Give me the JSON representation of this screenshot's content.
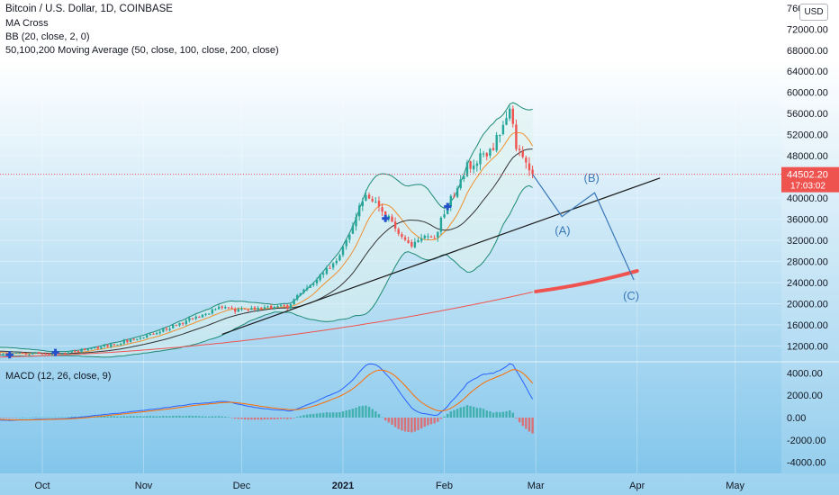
{
  "header": {
    "title": "Bitcoin / U.S. Dollar, 1D, COINBASE",
    "indicators": [
      "MA Cross",
      "BB (20, close, 2, 0)",
      "50,100,200 Moving Average (50, close, 100, close, 200, close)"
    ],
    "currency": "USD"
  },
  "macd_panel": {
    "label": "MACD (12, 26, close, 9)"
  },
  "last_price": {
    "value": "44502.20",
    "countdown": "17:03:02"
  },
  "colors": {
    "up": "#26a69a",
    "down": "#ef5350",
    "bb": "#1e8a76",
    "bb_fill": "#dff2ee",
    "ma_cross_fast": "#f0902f",
    "ma_cross_slow": "#333333",
    "ma200": "#ef5350",
    "macd": "#2962ff",
    "signal": "#ff6d00",
    "projection": "#3a78b8",
    "trendline": "#1a1a1a",
    "background_top": "#ffffff",
    "background_bottom": "#7cc3ea"
  },
  "chart_data": [
    {
      "type": "candlestick",
      "title": "Bitcoin / U.S. Dollar, 1D, COINBASE",
      "y_axis_ticks": [
        12000,
        16000,
        20000,
        24000,
        28000,
        32000,
        36000,
        40000,
        44000,
        48000,
        52000,
        56000,
        60000,
        64000,
        68000,
        72000,
        76000
      ],
      "y_axis_labels": [
        "12000.00",
        "16000.00",
        "20000.00",
        "24000.00",
        "28000.00",
        "32000.00",
        "36000.00",
        "40000.00",
        "44000.00",
        "48000.00",
        "52000.00",
        "56000.00",
        "60000.00",
        "64000.00",
        "68000.00",
        "72000.00",
        "76000.00"
      ],
      "ylim": [
        9000,
        77500
      ],
      "x_axis_labels": [
        "Oct",
        "Nov",
        "Dec",
        "2021",
        "Feb",
        "Mar",
        "Apr",
        "May"
      ],
      "x_axis_dates": [
        "2020-10-01",
        "2020-11-01",
        "2020-12-01",
        "2021-01-01",
        "2021-02-01",
        "2021-03-01",
        "2021-04-01",
        "2021-05-01"
      ],
      "close_anchors": [
        [
          "2020-09-01",
          11400
        ],
        [
          "2020-09-22",
          10500
        ],
        [
          "2020-10-08",
          10700
        ],
        [
          "2020-10-20",
          11900
        ],
        [
          "2020-11-01",
          13700
        ],
        [
          "2020-11-24",
          19100
        ],
        [
          "2020-12-01",
          18800
        ],
        [
          "2020-12-15",
          19400
        ],
        [
          "2020-12-31",
          29000
        ],
        [
          "2021-01-08",
          41000
        ],
        [
          "2021-01-13",
          37500
        ],
        [
          "2021-01-21",
          31000
        ],
        [
          "2021-01-29",
          33000
        ],
        [
          "2021-02-08",
          46000
        ],
        [
          "2021-02-15",
          48500
        ],
        [
          "2021-02-21",
          57500
        ],
        [
          "2021-02-23",
          48800
        ],
        [
          "2021-02-27",
          46200
        ],
        [
          "2021-02-28",
          44502
        ]
      ],
      "ma_cross_markers": [
        "2020-09-02",
        "2020-09-16",
        "2020-09-21",
        "2020-10-05",
        "2021-01-14",
        "2021-02-02"
      ],
      "bollinger_bands": {
        "period": 20,
        "stddev": 2
      },
      "moving_averages": [
        50,
        100,
        200
      ],
      "projection": {
        "points": [
          [
            "2021-02-28",
            44502
          ],
          [
            "2021-03-09",
            36500
          ],
          [
            "2021-03-19",
            41000
          ],
          [
            "2021-03-31",
            24500
          ]
        ],
        "labels": [
          "(A)",
          "(B)",
          "(C)"
        ]
      },
      "trendline": [
        [
          "2020-11-25",
          14200
        ],
        [
          "2021-04-08",
          43800
        ]
      ],
      "ma200_projection": [
        [
          "2021-03-01",
          22300
        ],
        [
          "2021-04-01",
          26200
        ]
      ],
      "last_price": 44502.2
    },
    {
      "type": "bar",
      "title": "MACD (12, 26, close, 9)",
      "y_axis_ticks": [
        -4000,
        -2000,
        0,
        2000,
        4000
      ],
      "y_axis_labels": [
        "-4000.00",
        "-2000.00",
        "0.00",
        "2000.00",
        "4000.00"
      ],
      "ylim": [
        -5000,
        5000
      ],
      "series": [
        {
          "name": "MACD",
          "type": "line"
        },
        {
          "name": "Signal",
          "type": "line"
        },
        {
          "name": "Histogram",
          "type": "bar"
        }
      ]
    }
  ]
}
